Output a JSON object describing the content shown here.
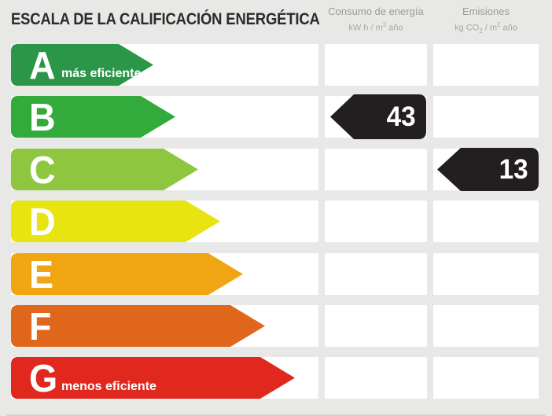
{
  "title": "ESCALA DE LA CALIFICACIÓN ENERGÉTICA",
  "columns": {
    "consumo": {
      "label": "Consumo de energía",
      "unit_pre": "kW h / m",
      "unit_sup": "2",
      "unit_post": " año"
    },
    "emisiones": {
      "label": "Emisiones",
      "unit_pre": "kg CO",
      "unit_sub": "2",
      "unit_mid": " / m",
      "unit_sup": "2",
      "unit_post": " año"
    }
  },
  "rows": [
    {
      "letter": "A",
      "label": "más eficiente",
      "color": "#2b9548",
      "arrow_width": 181
    },
    {
      "letter": "B",
      "label": "",
      "color": "#33ab3c",
      "arrow_width": 209,
      "consumo_value": "43"
    },
    {
      "letter": "C",
      "label": "",
      "color": "#8ec63f",
      "arrow_width": 238,
      "emisiones_value": "13"
    },
    {
      "letter": "D",
      "label": "",
      "color": "#e8e412",
      "arrow_width": 266
    },
    {
      "letter": "E",
      "label": "",
      "color": "#efa612",
      "arrow_width": 295
    },
    {
      "letter": "F",
      "label": "",
      "color": "#e0661c",
      "arrow_width": 323
    },
    {
      "letter": "G",
      "label": "menos eficiente",
      "color": "#e1281e",
      "arrow_width": 361
    }
  ],
  "colors": {
    "value_arrow": "#231f20",
    "background": "#e8e8e6",
    "cell": "#ffffff"
  },
  "chart_data": {
    "type": "bar",
    "title": "ESCALA DE LA CALIFICACIÓN ENERGÉTICA",
    "categories": [
      "A",
      "B",
      "C",
      "D",
      "E",
      "F",
      "G"
    ],
    "annotations": {
      "A": "más eficiente",
      "G": "menos eficiente"
    },
    "bar_colors": [
      "#2b9548",
      "#33ab3c",
      "#8ec63f",
      "#e8e412",
      "#efa612",
      "#e0661c",
      "#e1281e"
    ],
    "bar_relative_lengths": [
      181,
      209,
      238,
      266,
      295,
      323,
      361
    ],
    "series": [
      {
        "name": "Consumo de energía",
        "unit": "kW h / m2 año",
        "rating": "B",
        "value": 43
      },
      {
        "name": "Emisiones",
        "unit": "kg CO2 / m2 año",
        "rating": "C",
        "value": 13
      }
    ],
    "legend_position": "none",
    "grid": false
  }
}
